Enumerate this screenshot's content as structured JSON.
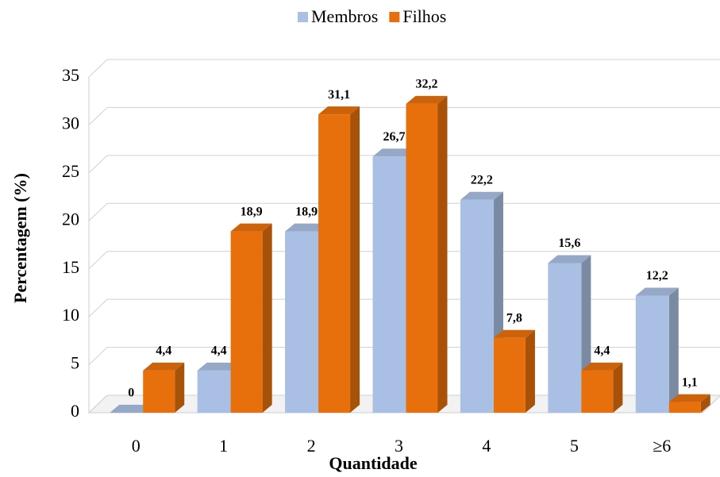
{
  "chart_data": {
    "type": "bar3d",
    "x_label": "Quantidade",
    "y_label": "Percentagem (%)",
    "categories": [
      "0",
      "1",
      "2",
      "3",
      "4",
      "5",
      "≥6"
    ],
    "series": [
      {
        "name": "Membros",
        "color": "#a9bfe3",
        "values": [
          0,
          4.4,
          18.9,
          26.7,
          22.2,
          15.6,
          12.2
        ],
        "value_labels": [
          "0",
          "4,4",
          "18,9",
          "26,7",
          "22,2",
          "15,6",
          "12,2"
        ]
      },
      {
        "name": "Filhos",
        "color": "#e8700c",
        "values": [
          4.4,
          18.9,
          31.1,
          32.2,
          7.8,
          4.4,
          1.1
        ],
        "value_labels": [
          "4,4",
          "18,9",
          "31,1",
          "32,2",
          "7,8",
          "4,4",
          "1,1"
        ]
      }
    ],
    "ylim": [
      0,
      35
    ],
    "yticks": [
      0,
      5,
      10,
      15,
      20,
      25,
      30,
      35
    ],
    "grid": true,
    "legend": "top"
  }
}
